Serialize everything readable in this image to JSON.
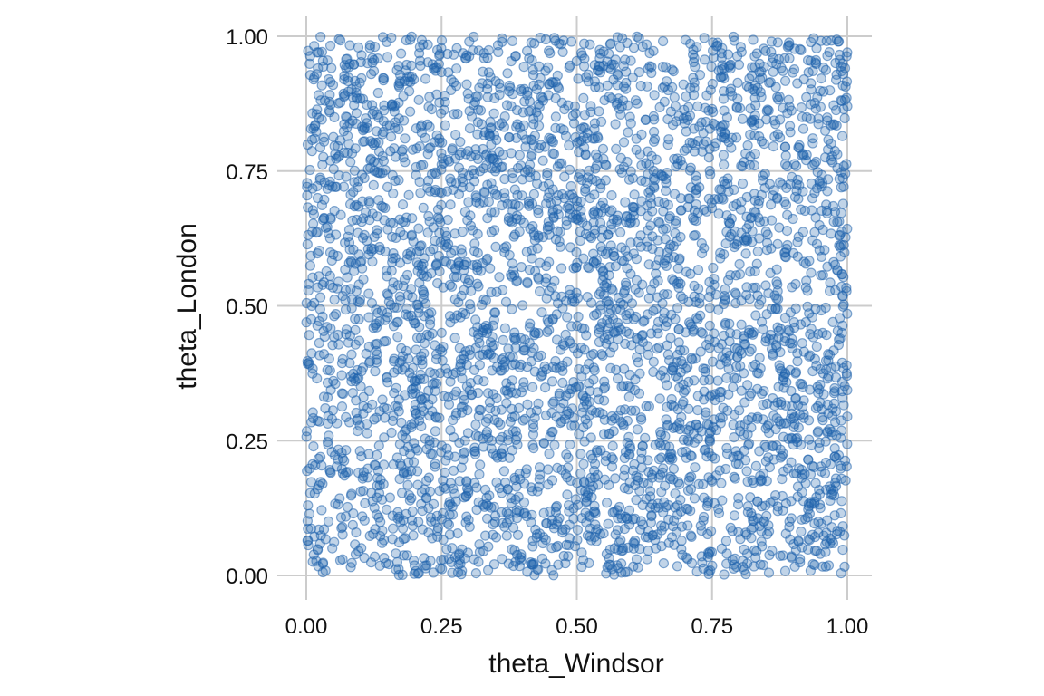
{
  "chart_data": {
    "type": "scatter",
    "title": "",
    "xlabel": "theta_Windsor",
    "ylabel": "theta_London",
    "xlim": [
      0,
      1
    ],
    "ylim": [
      0,
      1
    ],
    "x_ticks": [
      "0.00",
      "0.25",
      "0.50",
      "0.75",
      "1.00"
    ],
    "y_ticks": [
      "0.00",
      "0.25",
      "0.50",
      "0.75",
      "1.00"
    ],
    "grid": true,
    "point_color": "#1f63ad",
    "point_count": 4000,
    "distribution_note": "approximately uniform over the unit square; points are sampled, not individually read",
    "points": [
      [
        0.02,
        0.97
      ],
      [
        0.42,
        0.02
      ],
      [
        0.58,
        0.98
      ],
      [
        0.63,
        0.03
      ],
      [
        0.79,
        0.02
      ],
      [
        0.95,
        0.04
      ],
      [
        0.07,
        0.92
      ],
      [
        0.21,
        0.98
      ],
      [
        0.86,
        0.99
      ],
      [
        0.99,
        0.88
      ],
      [
        0.01,
        0.5
      ],
      [
        0.99,
        0.45
      ],
      [
        0.49,
        0.99
      ],
      [
        0.31,
        0.03
      ],
      [
        0.14,
        0.06
      ],
      [
        0.92,
        0.92
      ],
      [
        0.03,
        0.17
      ],
      [
        0.97,
        0.16
      ],
      [
        0.55,
        0.52
      ],
      [
        0.33,
        0.71
      ],
      [
        0.72,
        0.28
      ],
      [
        0.47,
        0.31
      ],
      [
        0.66,
        0.74
      ],
      [
        0.25,
        0.45
      ]
    ]
  }
}
